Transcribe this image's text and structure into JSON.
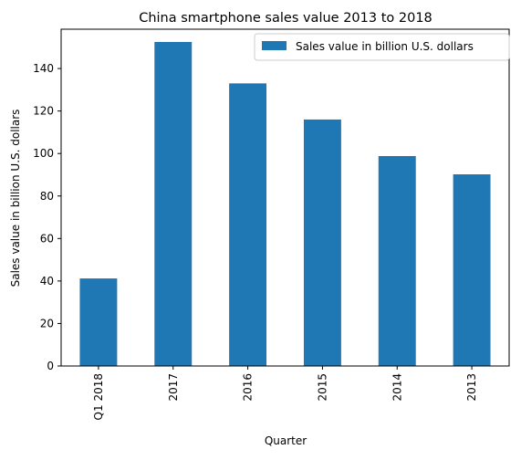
{
  "chart_data": {
    "type": "bar",
    "title": "China smartphone sales value 2013 to 2018",
    "xlabel": "Quarter",
    "ylabel": "Sales value in billion U.S. dollars",
    "categories": [
      "Q1 2018",
      "2017",
      "2016",
      "2015",
      "2014",
      "2013"
    ],
    "series": [
      {
        "name": "Sales value in billion U.S. dollars",
        "values": [
          41.2,
          152.5,
          133.0,
          116.0,
          98.8,
          90.2
        ],
        "color": "#1f77b4"
      }
    ],
    "ylim": [
      0,
      158.5
    ],
    "yticks": [
      "0",
      "20",
      "40",
      "60",
      "80",
      "100",
      "120",
      "140"
    ],
    "grid": false,
    "legend": "top-right"
  }
}
